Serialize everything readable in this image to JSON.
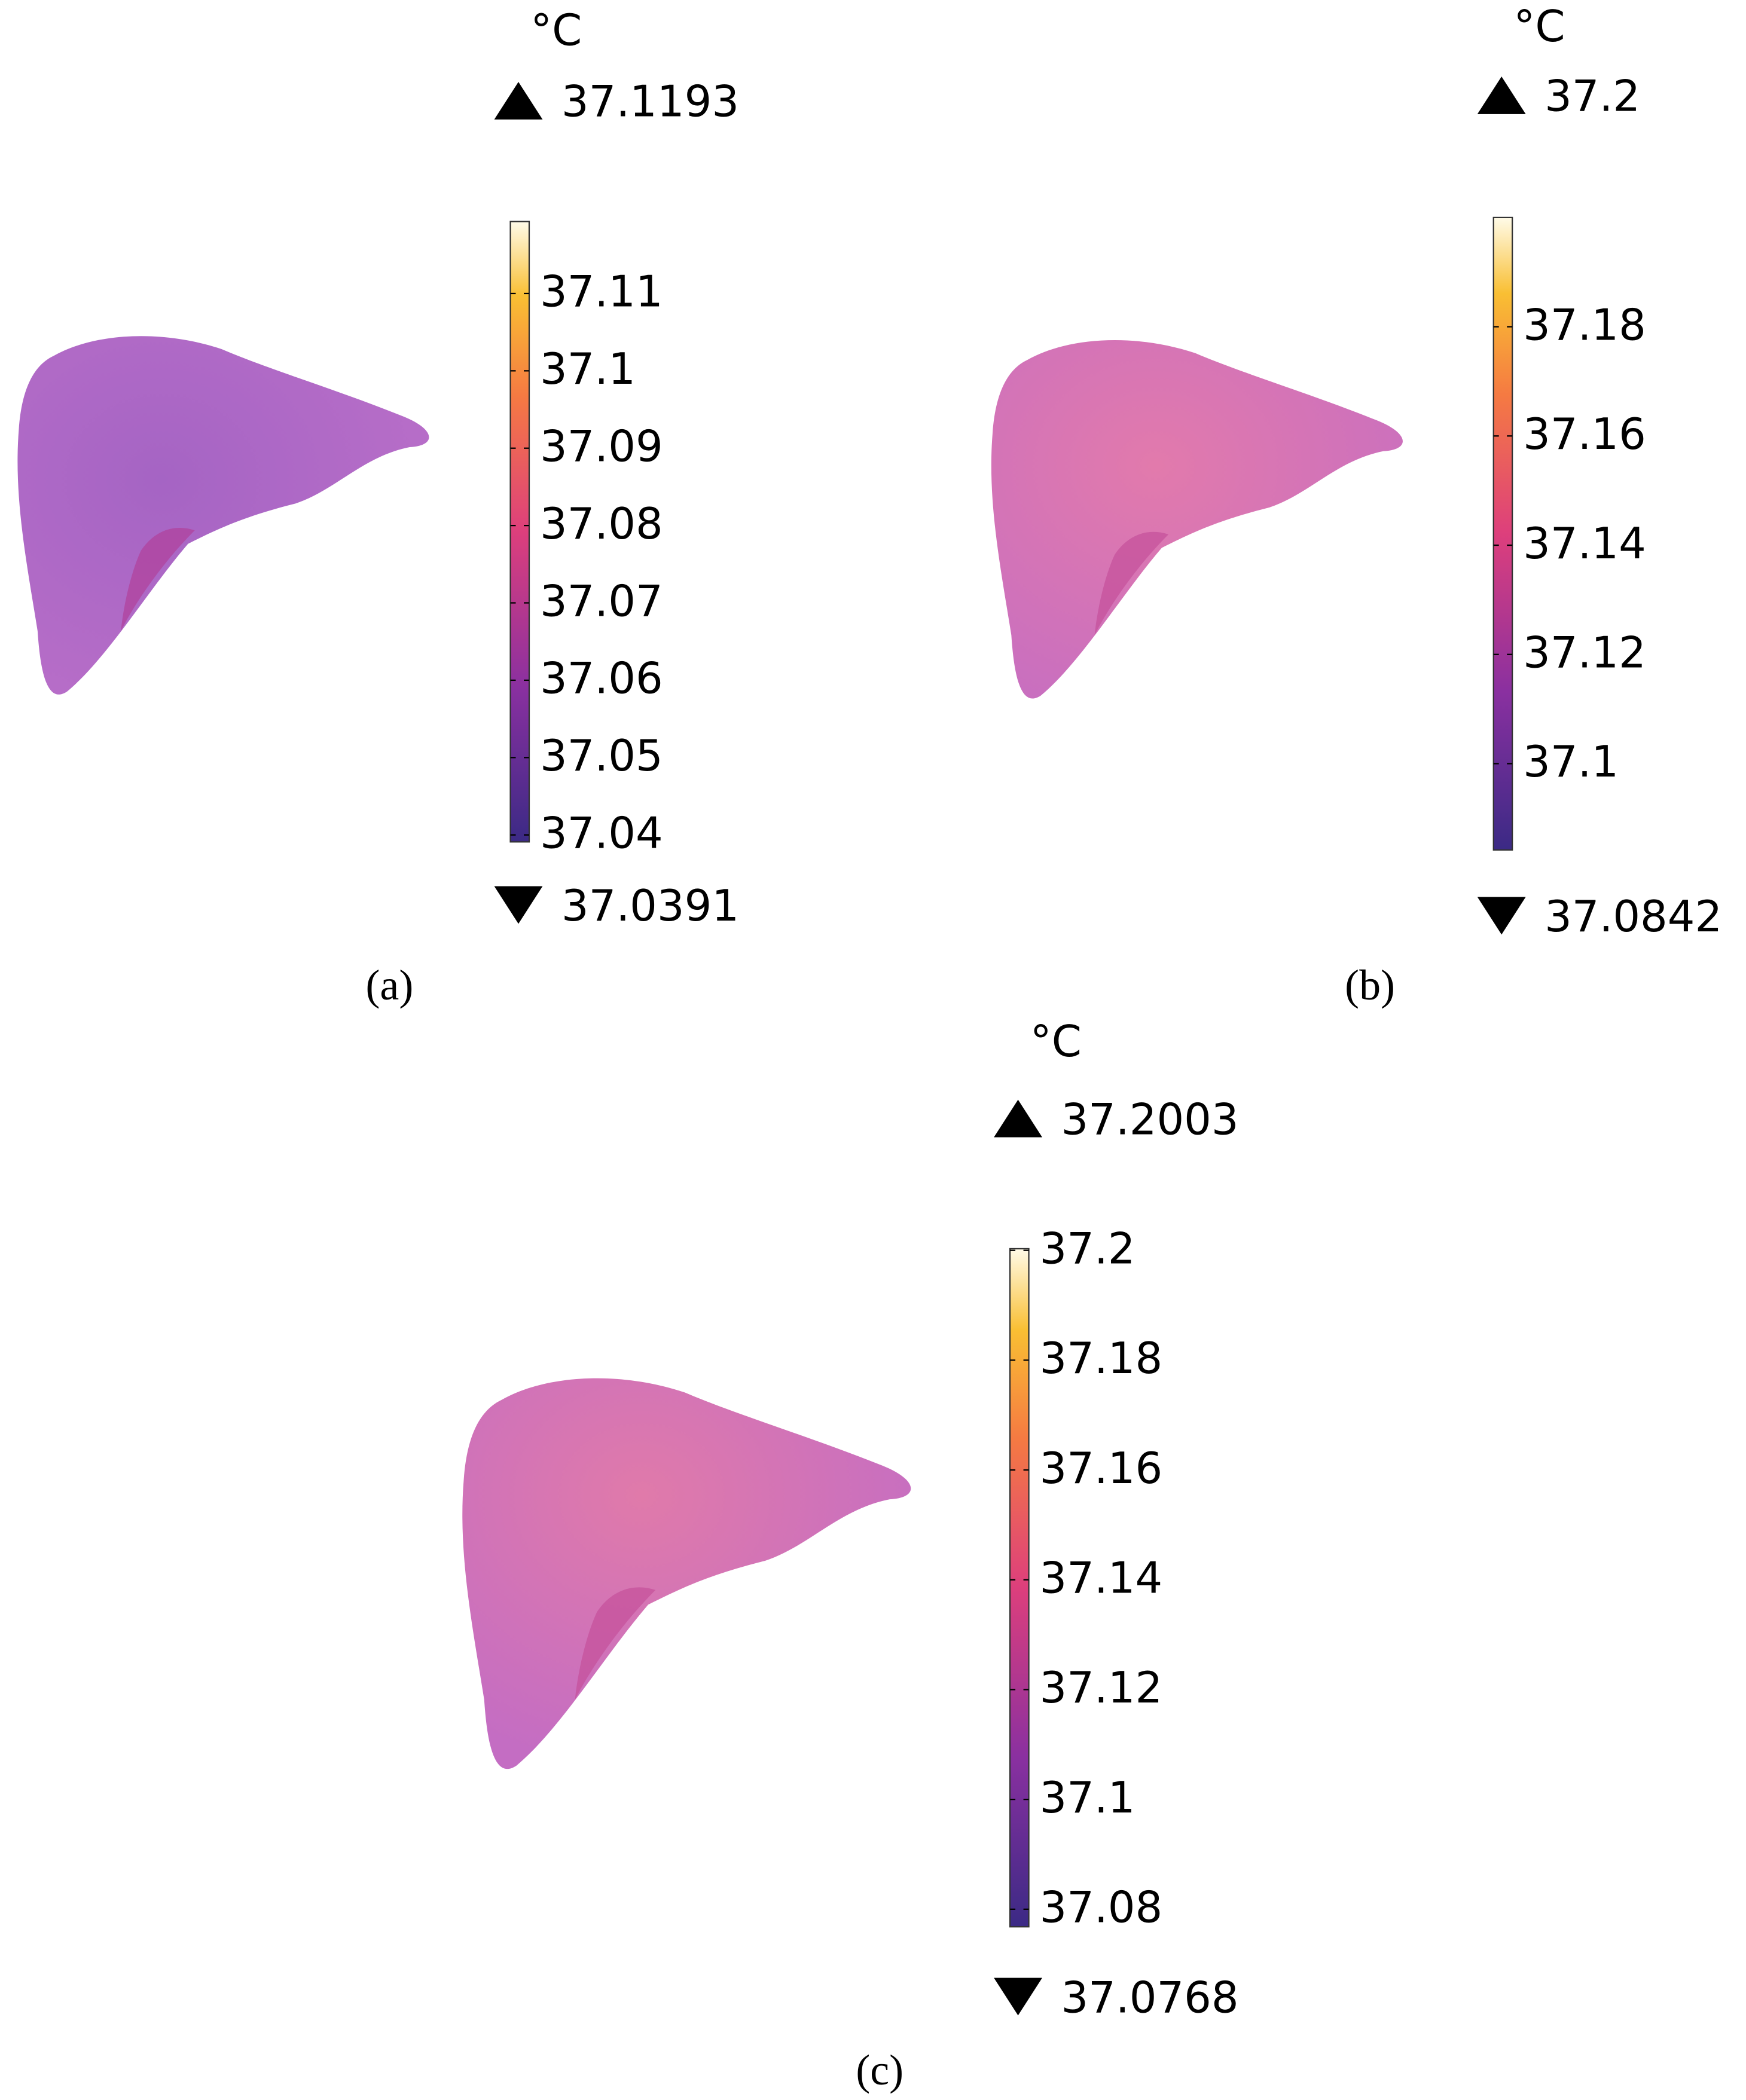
{
  "panels": [
    {
      "label": "(a)",
      "unit": "°C",
      "max": 37.1193,
      "min": 37.0391,
      "ticks": [
        37.04,
        37.05,
        37.06,
        37.07,
        37.08,
        37.09,
        37.1,
        37.11
      ]
    },
    {
      "label": "(b)",
      "unit": "°C",
      "max": 37.2,
      "min": 37.0842,
      "ticks": [
        37.1,
        37.12,
        37.14,
        37.16,
        37.18
      ]
    },
    {
      "label": "(c)",
      "unit": "°C",
      "max": 37.2003,
      "min": 37.0768,
      "ticks": [
        37.08,
        37.1,
        37.12,
        37.14,
        37.16,
        37.18,
        37.2
      ]
    }
  ]
}
